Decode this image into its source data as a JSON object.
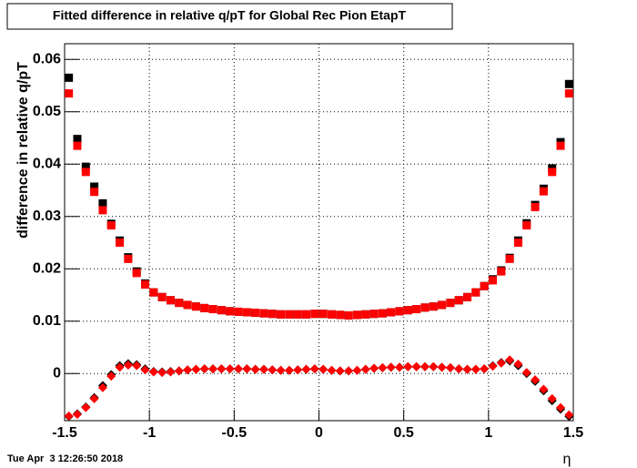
{
  "chart_data": {
    "type": "scatter",
    "title": "Fitted difference in relative q/pT for Global Rec Pion EtapT",
    "y_label": "difference in relative q/pT",
    "x_label": "η",
    "timestamp": "Tue Apr  3 12:26:50 2018",
    "x": [
      -1.475,
      -1.425,
      -1.375,
      -1.325,
      -1.275,
      -1.225,
      -1.175,
      -1.125,
      -1.075,
      -1.025,
      -0.975,
      -0.925,
      -0.875,
      -0.825,
      -0.775,
      -0.725,
      -0.675,
      -0.625,
      -0.575,
      -0.525,
      -0.475,
      -0.425,
      -0.375,
      -0.325,
      -0.275,
      -0.225,
      -0.175,
      -0.125,
      -0.075,
      -0.025,
      0.025,
      0.075,
      0.125,
      0.175,
      0.225,
      0.275,
      0.325,
      0.375,
      0.425,
      0.475,
      0.525,
      0.575,
      0.625,
      0.675,
      0.725,
      0.775,
      0.825,
      0.875,
      0.925,
      0.975,
      1.025,
      1.075,
      1.125,
      1.175,
      1.225,
      1.275,
      1.325,
      1.375,
      1.425,
      1.475
    ],
    "series": [
      {
        "color": "#000000",
        "marker": "square",
        "values": [
          0.0565,
          0.0448,
          0.0395,
          0.0357,
          0.0325,
          0.0286,
          0.0254,
          0.0222,
          0.0195,
          0.0172,
          0.0155,
          0.0146,
          0.014,
          0.0135,
          0.0131,
          0.0128,
          0.0125,
          0.0123,
          0.0121,
          0.0119,
          0.0118,
          0.0117,
          0.0116,
          0.0115,
          0.0114,
          0.0113,
          0.0113,
          0.0113,
          0.0113,
          0.0114,
          0.0114,
          0.0113,
          0.0112,
          0.0111,
          0.0112,
          0.0113,
          0.0114,
          0.0115,
          0.0117,
          0.0119,
          0.0121,
          0.0123,
          0.0126,
          0.0128,
          0.0131,
          0.0135,
          0.014,
          0.0146,
          0.0155,
          0.0167,
          0.018,
          0.0197,
          0.0221,
          0.0254,
          0.0287,
          0.0322,
          0.0353,
          0.0392,
          0.0442,
          0.0553
        ]
      },
      {
        "color": "#ff0000",
        "marker": "square",
        "values": [
          0.0535,
          0.0435,
          0.0385,
          0.0347,
          0.0312,
          0.0283,
          0.025,
          0.0219,
          0.0192,
          0.017,
          0.0155,
          0.0146,
          0.014,
          0.0135,
          0.0131,
          0.0128,
          0.0125,
          0.0123,
          0.0121,
          0.0119,
          0.0118,
          0.0117,
          0.0116,
          0.0115,
          0.0114,
          0.0113,
          0.0113,
          0.0113,
          0.0113,
          0.0114,
          0.0114,
          0.0113,
          0.0112,
          0.0111,
          0.0112,
          0.0113,
          0.0114,
          0.0115,
          0.0117,
          0.0119,
          0.0121,
          0.0123,
          0.0126,
          0.0128,
          0.0131,
          0.0135,
          0.014,
          0.0146,
          0.0155,
          0.0167,
          0.0178,
          0.0195,
          0.0219,
          0.025,
          0.0283,
          0.0318,
          0.0348,
          0.0385,
          0.0435,
          0.0535
        ]
      },
      {
        "color": "#000000",
        "marker": "diamond",
        "values": [
          -0.0082,
          -0.0077,
          -0.0064,
          -0.0046,
          -0.0023,
          -0.0002,
          0.0015,
          0.0019,
          0.0017,
          0.0009,
          0.0004,
          0.0003,
          0.0004,
          0.0005,
          0.0007,
          0.0008,
          0.0009,
          0.0009,
          0.0009,
          0.0009,
          0.0009,
          0.0009,
          0.0008,
          0.0008,
          0.0007,
          0.0006,
          0.0006,
          0.0007,
          0.0008,
          0.0009,
          0.0008,
          0.0006,
          0.0005,
          0.0005,
          0.0006,
          0.0008,
          0.001,
          0.0011,
          0.0012,
          0.0012,
          0.0013,
          0.0013,
          0.0013,
          0.0013,
          0.0012,
          0.0011,
          0.0009,
          0.0008,
          0.0008,
          0.0009,
          0.0015,
          0.0021,
          0.0024,
          0.0015,
          0.0,
          -0.0015,
          -0.0033,
          -0.0052,
          -0.0068,
          -0.0082
        ]
      },
      {
        "color": "#ff0000",
        "marker": "diamond",
        "values": [
          -0.0081,
          -0.0078,
          -0.0065,
          -0.0048,
          -0.0027,
          -0.0005,
          0.0012,
          0.0016,
          0.0015,
          0.0007,
          0.0003,
          0.0002,
          0.0003,
          0.0005,
          0.0007,
          0.0008,
          0.0009,
          0.0009,
          0.0009,
          0.0009,
          0.0009,
          0.0009,
          0.0008,
          0.0008,
          0.0007,
          0.0006,
          0.0006,
          0.0007,
          0.0008,
          0.0009,
          0.0008,
          0.0006,
          0.0005,
          0.0005,
          0.0006,
          0.0008,
          0.001,
          0.0011,
          0.0012,
          0.0012,
          0.0013,
          0.0013,
          0.0013,
          0.0013,
          0.0012,
          0.0011,
          0.0009,
          0.0008,
          0.0008,
          0.0009,
          0.0014,
          0.002,
          0.0026,
          0.0018,
          0.0002,
          -0.0012,
          -0.003,
          -0.0048,
          -0.0065,
          -0.0079
        ]
      }
    ],
    "xlim": [
      -1.5,
      1.5
    ],
    "ylim": [
      -0.009,
      0.063
    ],
    "xticks": [
      -1.5,
      -1,
      -0.5,
      0,
      0.5,
      1,
      1.5
    ],
    "yticks": [
      0,
      0.01,
      0.02,
      0.03,
      0.04,
      0.05,
      0.06
    ],
    "grid": true
  }
}
